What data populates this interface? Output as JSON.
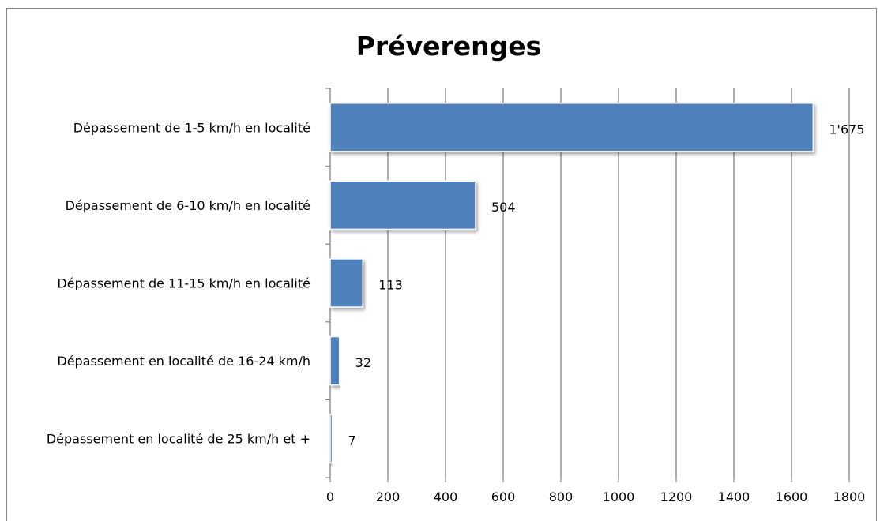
{
  "chart_data": {
    "type": "bar",
    "orientation": "horizontal",
    "title": "Préverenges",
    "categories": [
      "Dépassement de 1-5 km/h en localité",
      "Dépassement de 6-10 km/h en localité",
      "Dépassement de 11-15 km/h en localité",
      "Dépassement en  localité de 16-24 km/h",
      "Dépassement en localité de 25 km/h et +"
    ],
    "values": [
      1675,
      504,
      113,
      32,
      7
    ],
    "data_labels": [
      "1'675",
      "504",
      "113",
      "32",
      "7"
    ],
    "xlim": [
      0,
      1800
    ],
    "xticks": [
      0,
      200,
      400,
      600,
      800,
      1000,
      1200,
      1400,
      1600,
      1800
    ],
    "xticklabels": [
      "0",
      "200",
      "400",
      "600",
      "800",
      "1000",
      "1200",
      "1400",
      "1600",
      "1800"
    ],
    "grid": "vertical",
    "legend": "none",
    "bar_color": "#4f81bd",
    "bar_stroke": "#ffffff"
  }
}
